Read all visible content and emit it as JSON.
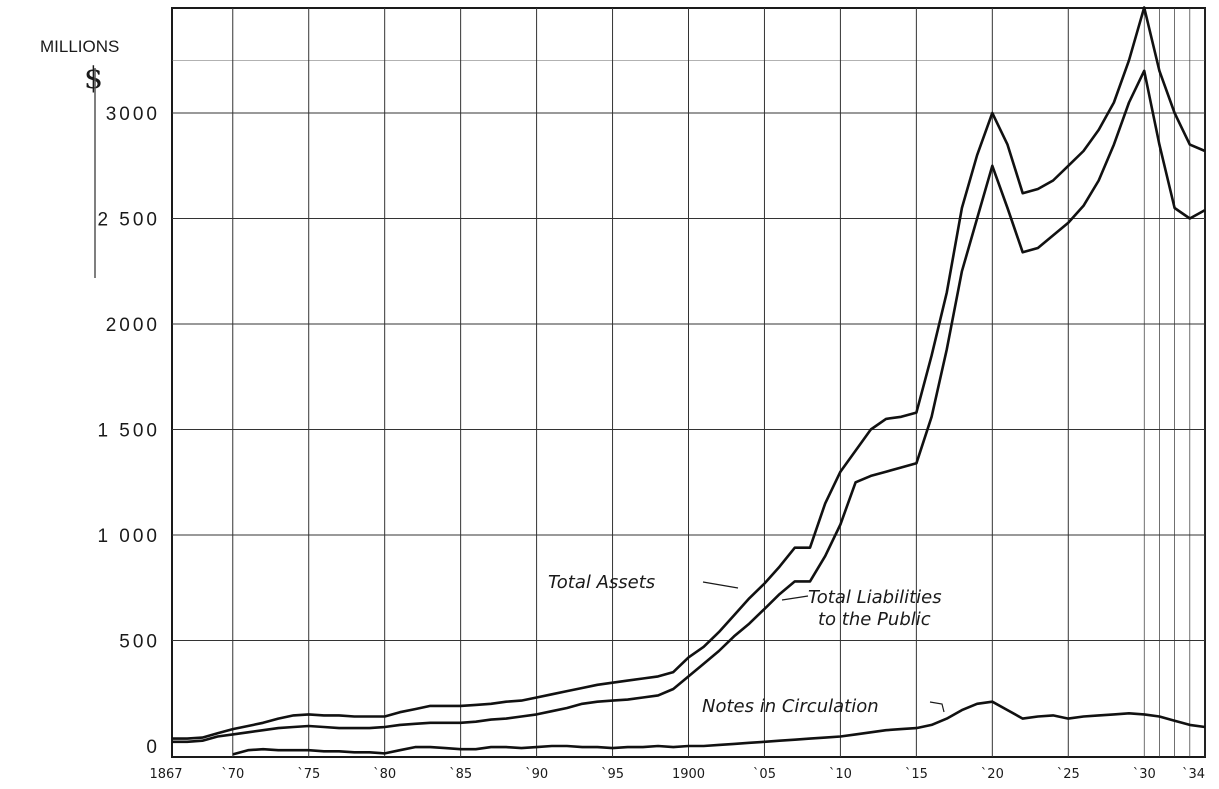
{
  "chart_data": {
    "type": "line",
    "unit_label": "MILLIONS",
    "currency_symbol": "$",
    "y_ticks": [
      {
        "value": 0,
        "label": "0"
      },
      {
        "value": 500,
        "label": "500"
      },
      {
        "value": 1000,
        "label": "1 000"
      },
      {
        "value": 1500,
        "label": "1 500"
      },
      {
        "value": 2000,
        "label": "2000"
      },
      {
        "value": 2500,
        "label": "2 500"
      },
      {
        "value": 3000,
        "label": "3000"
      }
    ],
    "x_ticks": [
      {
        "value": 1867,
        "label": "1867"
      },
      {
        "value": 1870,
        "label": "`70"
      },
      {
        "value": 1875,
        "label": "`75"
      },
      {
        "value": 1880,
        "label": "`80"
      },
      {
        "value": 1885,
        "label": "`85"
      },
      {
        "value": 1890,
        "label": "`90"
      },
      {
        "value": 1895,
        "label": "`95"
      },
      {
        "value": 1900,
        "label": "1900"
      },
      {
        "value": 1905,
        "label": "`05"
      },
      {
        "value": 1910,
        "label": "`10"
      },
      {
        "value": 1915,
        "label": "`15"
      },
      {
        "value": 1920,
        "label": "`20"
      },
      {
        "value": 1925,
        "label": "`25"
      },
      {
        "value": 1930,
        "label": "`30"
      },
      {
        "value": 1934,
        "label": "`34"
      }
    ],
    "xlim": [
      1866,
      1934
    ],
    "ylim": [
      -50,
      3500
    ],
    "grid": true,
    "series": [
      {
        "name": "Total Assets",
        "label_text": "Total Assets",
        "x": [
          1866,
          1867,
          1868,
          1869,
          1870,
          1871,
          1872,
          1873,
          1874,
          1875,
          1876,
          1877,
          1878,
          1879,
          1880,
          1881,
          1882,
          1883,
          1884,
          1885,
          1886,
          1887,
          1888,
          1889,
          1890,
          1891,
          1892,
          1893,
          1894,
          1895,
          1896,
          1897,
          1898,
          1899,
          1900,
          1901,
          1902,
          1903,
          1904,
          1905,
          1906,
          1907,
          1908,
          1909,
          1910,
          1911,
          1912,
          1913,
          1914,
          1915,
          1916,
          1917,
          1918,
          1919,
          1920,
          1921,
          1922,
          1923,
          1924,
          1925,
          1926,
          1927,
          1928,
          1929,
          1930,
          1931,
          1932,
          1933,
          1934
        ],
        "values": [
          35,
          35,
          40,
          60,
          80,
          95,
          110,
          130,
          145,
          150,
          145,
          145,
          140,
          140,
          140,
          160,
          175,
          190,
          190,
          190,
          195,
          200,
          210,
          215,
          230,
          245,
          260,
          275,
          290,
          300,
          310,
          320,
          330,
          350,
          420,
          470,
          540,
          620,
          700,
          770,
          850,
          940,
          940,
          1150,
          1300,
          1400,
          1500,
          1550,
          1560,
          1580,
          1850,
          2150,
          2550,
          2800,
          3000,
          2850,
          2620,
          2640,
          2680,
          2750,
          2820,
          2920,
          3050,
          3250,
          3500,
          3200,
          3000,
          2850,
          2820
        ]
      },
      {
        "name": "Total Liabilities to the Public",
        "label_line1": "Total Liabilities",
        "label_line2": "to the Public",
        "x": [
          1866,
          1867,
          1868,
          1869,
          1870,
          1871,
          1872,
          1873,
          1874,
          1875,
          1876,
          1877,
          1878,
          1879,
          1880,
          1881,
          1882,
          1883,
          1884,
          1885,
          1886,
          1887,
          1888,
          1889,
          1890,
          1891,
          1892,
          1893,
          1894,
          1895,
          1896,
          1897,
          1898,
          1899,
          1900,
          1901,
          1902,
          1903,
          1904,
          1905,
          1906,
          1907,
          1908,
          1909,
          1910,
          1911,
          1912,
          1913,
          1914,
          1915,
          1916,
          1917,
          1918,
          1919,
          1920,
          1921,
          1922,
          1923,
          1924,
          1925,
          1926,
          1927,
          1928,
          1929,
          1930,
          1931,
          1932,
          1933,
          1934
        ],
        "values": [
          20,
          20,
          25,
          45,
          55,
          65,
          75,
          85,
          90,
          95,
          90,
          85,
          85,
          85,
          90,
          100,
          105,
          110,
          110,
          110,
          115,
          125,
          130,
          140,
          150,
          165,
          180,
          200,
          210,
          215,
          220,
          230,
          240,
          270,
          330,
          390,
          450,
          520,
          580,
          650,
          720,
          780,
          780,
          900,
          1050,
          1250,
          1280,
          1300,
          1320,
          1340,
          1560,
          1880,
          2250,
          2500,
          2750,
          2550,
          2340,
          2360,
          2420,
          2480,
          2560,
          2680,
          2850,
          3050,
          3200,
          2850,
          2550,
          2500,
          2540
        ]
      },
      {
        "name": "Notes in Circulation",
        "label_text": "Notes in Circulation",
        "x": [
          1866,
          1867,
          1868,
          1869,
          1870,
          1871,
          1872,
          1873,
          1874,
          1875,
          1876,
          1877,
          1878,
          1879,
          1880,
          1881,
          1882,
          1883,
          1884,
          1885,
          1886,
          1887,
          1888,
          1889,
          1890,
          1891,
          1892,
          1893,
          1894,
          1895,
          1896,
          1897,
          1898,
          1899,
          1900,
          1901,
          1902,
          1903,
          1904,
          1905,
          1906,
          1907,
          1908,
          1909,
          1910,
          1911,
          1912,
          1913,
          1914,
          1915,
          1916,
          1917,
          1918,
          1919,
          1920,
          1921,
          1922,
          1923,
          1924,
          1925,
          1926,
          1927,
          1928,
          1929,
          1930,
          1931,
          1932,
          1933,
          1934
        ],
        "values": [
          null,
          null,
          null,
          null,
          -40,
          -20,
          -15,
          -20,
          -20,
          -20,
          -25,
          -25,
          -30,
          -30,
          -35,
          -20,
          -5,
          -5,
          -10,
          -15,
          -15,
          -5,
          -5,
          -10,
          -5,
          0,
          0,
          -5,
          -5,
          -10,
          -5,
          -5,
          0,
          -5,
          0,
          0,
          5,
          10,
          15,
          20,
          25,
          30,
          35,
          40,
          45,
          55,
          65,
          75,
          80,
          85,
          100,
          130,
          170,
          200,
          210,
          170,
          130,
          140,
          145,
          130,
          140,
          145,
          150,
          155,
          150,
          140,
          120,
          100,
          90
        ]
      }
    ]
  }
}
